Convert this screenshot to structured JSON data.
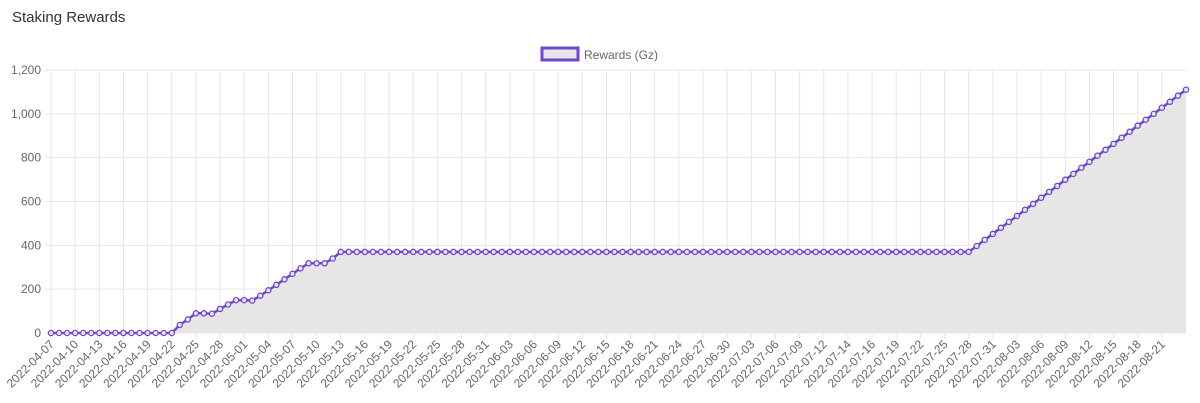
{
  "chart_data": {
    "type": "line",
    "title": "Staking Rewards",
    "categories": [
      "2022-04-07",
      null,
      null,
      "2022-04-10",
      null,
      null,
      "2022-04-13",
      null,
      null,
      "2022-04-16",
      null,
      null,
      "2022-04-19",
      null,
      null,
      "2022-04-22",
      null,
      null,
      "2022-04-25",
      null,
      null,
      "2022-04-28",
      null,
      null,
      "2022-05-01",
      null,
      null,
      "2022-05-04",
      null,
      null,
      "2022-05-07",
      null,
      null,
      "2022-05-10",
      null,
      null,
      "2022-05-13",
      null,
      null,
      "2022-05-16",
      null,
      null,
      "2022-05-19",
      null,
      null,
      "2022-05-22",
      null,
      null,
      "2022-05-25",
      null,
      null,
      "2022-05-28",
      null,
      null,
      "2022-05-31",
      null,
      null,
      "2022-06-03",
      null,
      null,
      "2022-06-06",
      null,
      null,
      "2022-06-09",
      null,
      null,
      "2022-06-12",
      null,
      null,
      "2022-06-15",
      null,
      null,
      "2022-06-18",
      null,
      null,
      "2022-06-21",
      null,
      null,
      "2022-06-24",
      null,
      null,
      "2022-06-27",
      null,
      null,
      "2022-06-30",
      null,
      null,
      "2022-07-03",
      null,
      null,
      "2022-07-06",
      null,
      null,
      "2022-07-09",
      null,
      null,
      "2022-07-12",
      null,
      null,
      "2022-07-14",
      null,
      null,
      "2022-07-16",
      null,
      null,
      "2022-07-19",
      null,
      null,
      "2022-07-22",
      null,
      null,
      "2022-07-25",
      null,
      null,
      "2022-07-28",
      null,
      null,
      "2022-07-31",
      null,
      null,
      "2022-08-03",
      null,
      null,
      "2022-08-06",
      null,
      null,
      "2022-08-09",
      null,
      null,
      "2022-08-12",
      null,
      null,
      "2022-08-15",
      null,
      null,
      "2022-08-18",
      null,
      null,
      "2022-08-21",
      null,
      null,
      null
    ],
    "series": [
      {
        "name": "Rewards (Gz)",
        "color": "#6e48d0",
        "fill_color": "#e6e6e6",
        "values": [
          0,
          0,
          0,
          0,
          0,
          0,
          0,
          0,
          0,
          0,
          0,
          0,
          0,
          0,
          0,
          0,
          37,
          62,
          90,
          90,
          88,
          110,
          130,
          150,
          150,
          148,
          170,
          195,
          220,
          245,
          270,
          295,
          318,
          318,
          318,
          340,
          370,
          370,
          370,
          370,
          370,
          370,
          370,
          370,
          370,
          370,
          370,
          370,
          370,
          370,
          370,
          370,
          370,
          370,
          370,
          370,
          370,
          370,
          370,
          370,
          370,
          370,
          370,
          370,
          370,
          370,
          370,
          370,
          370,
          370,
          370,
          370,
          370,
          370,
          370,
          370,
          370,
          370,
          370,
          370,
          370,
          370,
          370,
          370,
          370,
          370,
          370,
          370,
          370,
          370,
          370,
          370,
          370,
          370,
          370,
          370,
          370,
          370,
          370,
          370,
          370,
          370,
          370,
          370,
          370,
          370,
          370,
          370,
          370,
          370,
          370,
          370,
          370,
          370,
          370,
          397,
          425,
          452,
          480,
          507,
          534,
          562,
          589,
          617,
          644,
          671,
          699,
          726,
          754,
          781,
          809,
          836,
          863,
          891,
          918,
          946,
          973,
          1000,
          1028,
          1055,
          1083,
          1110
        ]
      }
    ],
    "ylim": [
      0,
      1200
    ],
    "yticks": [
      0,
      200,
      400,
      600,
      800,
      {
        "value": 1000,
        "label": "1,000"
      },
      {
        "value": 1200,
        "label": "1,200"
      }
    ],
    "grid": true,
    "legend": "top"
  }
}
